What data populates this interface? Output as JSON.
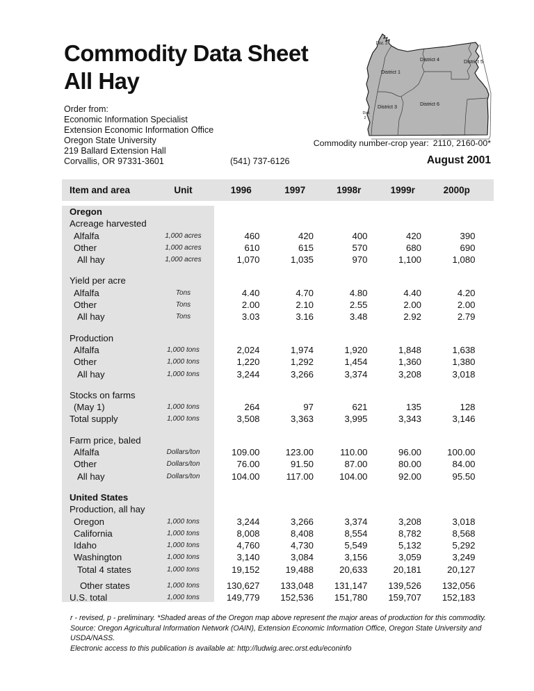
{
  "title": {
    "line1": "Commodity Data Sheet",
    "line2": "All Hay"
  },
  "order_block": {
    "lines": [
      "Order from:",
      "Economic Information Specialist",
      "Extension Economic Information Office",
      "Oregon State University",
      "219 Ballard Extension Hall",
      "Corvallis, OR 97331-3601"
    ]
  },
  "phone": "(541) 737-6126",
  "commodity_line": {
    "label": "Commodity number-crop year:",
    "value": "2110, 2160-00*"
  },
  "issue_date": "August 2001",
  "map": {
    "description": "oregon-districts-map",
    "fill": "#b5b5b5",
    "labels": [
      {
        "text": "Dist. 2"
      },
      {
        "text": "District 1"
      },
      {
        "text": "District 4"
      },
      {
        "text": "District 5"
      },
      {
        "text": "District 3"
      },
      {
        "text": "District 6"
      },
      {
        "text": "Dist."
      },
      {
        "text": "2"
      }
    ]
  },
  "table": {
    "columns": [
      "Item and area",
      "Unit",
      "1996",
      "1997",
      "1998r",
      "1999r",
      "2000p"
    ],
    "rows": [
      {
        "type": "section",
        "label": "Oregon"
      },
      {
        "type": "group",
        "label": "Acreage harvested"
      },
      {
        "type": "data",
        "label": "Alfalfa",
        "indent": 1,
        "unit": "1,000 acres",
        "values": [
          "460",
          "420",
          "400",
          "420",
          "390"
        ]
      },
      {
        "type": "data",
        "label": "Other",
        "indent": 1,
        "unit": "1,000 acres",
        "values": [
          "610",
          "615",
          "570",
          "680",
          "690"
        ]
      },
      {
        "type": "data",
        "label": "All hay",
        "indent": 2,
        "unit": "1,000 acres",
        "values": [
          "1,070",
          "1,035",
          "970",
          "1,100",
          "1,080"
        ]
      },
      {
        "type": "spacer"
      },
      {
        "type": "group",
        "label": "Yield per acre"
      },
      {
        "type": "data",
        "label": "Alfalfa",
        "indent": 1,
        "unit": "Tons",
        "values": [
          "4.40",
          "4.70",
          "4.80",
          "4.40",
          "4.20"
        ]
      },
      {
        "type": "data",
        "label": "Other",
        "indent": 1,
        "unit": "Tons",
        "values": [
          "2.00",
          "2.10",
          "2.55",
          "2.00",
          "2.00"
        ]
      },
      {
        "type": "data",
        "label": "All hay",
        "indent": 2,
        "unit": "Tons",
        "values": [
          "3.03",
          "3.16",
          "3.48",
          "2.92",
          "2.79"
        ]
      },
      {
        "type": "spacer"
      },
      {
        "type": "group",
        "label": "Production"
      },
      {
        "type": "data",
        "label": "Alfalfa",
        "indent": 1,
        "unit": "1,000 tons",
        "values": [
          "2,024",
          "1,974",
          "1,920",
          "1,848",
          "1,638"
        ]
      },
      {
        "type": "data",
        "label": "Other",
        "indent": 1,
        "unit": "1,000 tons",
        "values": [
          "1,220",
          "1,292",
          "1,454",
          "1,360",
          "1,380"
        ]
      },
      {
        "type": "data",
        "label": "All hay",
        "indent": 2,
        "unit": "1,000 tons",
        "values": [
          "3,244",
          "3,266",
          "3,374",
          "3,208",
          "3,018"
        ]
      },
      {
        "type": "spacer"
      },
      {
        "type": "group",
        "label": "Stocks on farms"
      },
      {
        "type": "data",
        "label": "(May 1)",
        "indent": 1,
        "unit": "1,000 tons",
        "values": [
          "264",
          "97",
          "621",
          "135",
          "128"
        ]
      },
      {
        "type": "data",
        "label": "Total supply",
        "indent": 0,
        "unit": "1,000 tons",
        "values": [
          "3,508",
          "3,363",
          "3,995",
          "3,343",
          "3,146"
        ]
      },
      {
        "type": "spacer"
      },
      {
        "type": "group",
        "label": "Farm price, baled"
      },
      {
        "type": "data",
        "label": "Alfalfa",
        "indent": 1,
        "unit": "Dollars/ton",
        "values": [
          "109.00",
          "123.00",
          "110.00",
          "96.00",
          "100.00"
        ]
      },
      {
        "type": "data",
        "label": "Other",
        "indent": 1,
        "unit": "Dollars/ton",
        "values": [
          "76.00",
          "91.50",
          "87.00",
          "80.00",
          "84.00"
        ]
      },
      {
        "type": "data",
        "label": "All hay",
        "indent": 2,
        "unit": "Dollars/ton",
        "values": [
          "104.00",
          "117.00",
          "104.00",
          "92.00",
          "95.50"
        ]
      },
      {
        "type": "spacer"
      },
      {
        "type": "section",
        "label": "United States"
      },
      {
        "type": "group",
        "label": "Production, all hay"
      },
      {
        "type": "data",
        "label": "Oregon",
        "indent": 1,
        "unit": "1,000 tons",
        "values": [
          "3,244",
          "3,266",
          "3,374",
          "3,208",
          "3,018"
        ]
      },
      {
        "type": "data",
        "label": "California",
        "indent": 1,
        "unit": "1,000 tons",
        "values": [
          "8,008",
          "8,408",
          "8,554",
          "8,782",
          "8,568"
        ]
      },
      {
        "type": "data",
        "label": "Idaho",
        "indent": 1,
        "unit": "1,000 tons",
        "values": [
          "4,760",
          "4,730",
          "5,549",
          "5,132",
          "5,292"
        ]
      },
      {
        "type": "data",
        "label": "Washington",
        "indent": 1,
        "unit": "1,000 tons",
        "values": [
          "3,140",
          "3,084",
          "3,156",
          "3,059",
          "3,249"
        ]
      },
      {
        "type": "data",
        "label": "Total 4 states",
        "indent": 2,
        "unit": "1,000 tons",
        "values": [
          "19,152",
          "19,488",
          "20,633",
          "20,181",
          "20,127"
        ]
      },
      {
        "type": "spacer",
        "small": true
      },
      {
        "type": "data",
        "label": "Other states",
        "indent": 3,
        "unit": "1,000 tons",
        "values": [
          "130,627",
          "133,048",
          "131,147",
          "139,526",
          "132,056"
        ]
      },
      {
        "type": "data",
        "label": "U.S. total",
        "indent": 0,
        "unit": "1,000 tons",
        "values": [
          "149,779",
          "152,536",
          "151,780",
          "159,707",
          "152,183"
        ]
      }
    ]
  },
  "footnotes": {
    "lines": [
      "r - revised, p - preliminary.  *Shaded areas of the Oregon map above represent the major areas of production for this commodity.",
      "Source: Oregon Agricultural Information Network (OAIN), Extension Economic Information Office, Oregon State University and USDA/NASS.",
      "Electronic access to this publication is available at:  http://ludwig.arec.orst.edu/econinfo"
    ]
  },
  "colors": {
    "shading": "#e2e2e2",
    "map_fill": "#b5b5b5",
    "text": "#111111"
  }
}
